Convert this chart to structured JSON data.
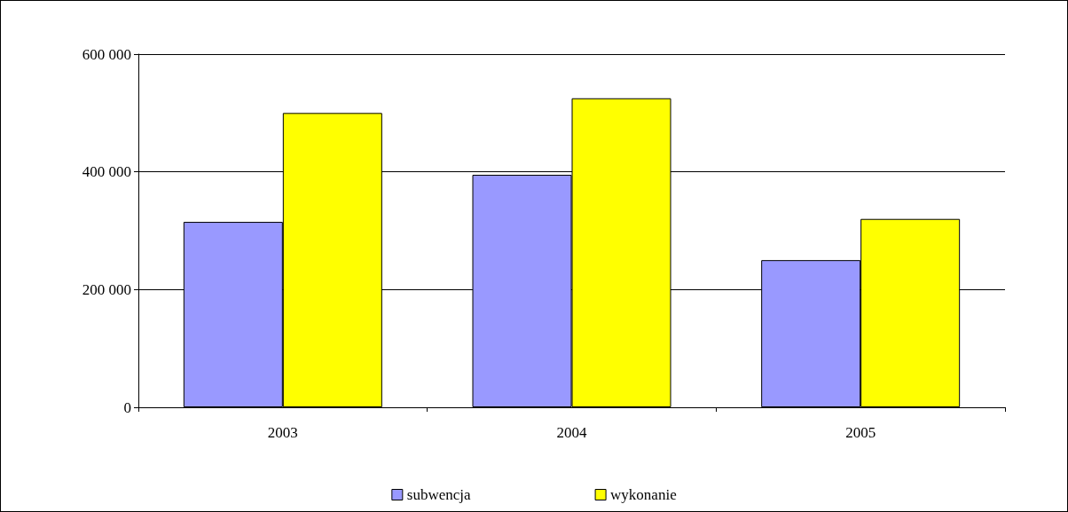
{
  "chart_data": {
    "type": "bar",
    "categories": [
      "2003",
      "2004",
      "2005"
    ],
    "series": [
      {
        "name": "subwencja",
        "color": "#9999ff",
        "values": [
          315000,
          395000,
          250000
        ]
      },
      {
        "name": "wykonanie",
        "color": "#ffff00",
        "values": [
          500000,
          525000,
          320000
        ]
      }
    ],
    "ylim": [
      0,
      600000
    ],
    "yticks": [
      {
        "value": 0,
        "label": "0"
      },
      {
        "value": 200000,
        "label": "200 000"
      },
      {
        "value": 400000,
        "label": "400 000"
      },
      {
        "value": 600000,
        "label": "600 000"
      }
    ],
    "grid": "y",
    "legend": "bottom"
  }
}
